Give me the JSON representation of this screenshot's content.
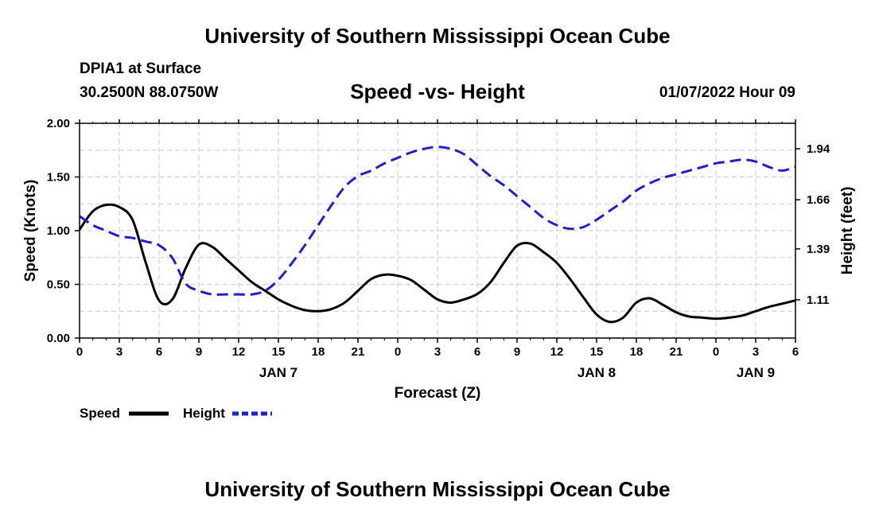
{
  "header": {
    "title": "University of Southern Mississippi Ocean Cube",
    "station": "DPIA1 at Surface",
    "coords": "30.2500N  88.0750W",
    "datetime": "01/07/2022 Hour 09"
  },
  "footer": {
    "title": "University of Southern Mississippi Ocean Cube"
  },
  "chart_data": {
    "type": "line",
    "title": "Speed -vs- Height",
    "xlabel": "Forecast (Z)",
    "ylabel": "Speed (Knots)",
    "y2label": "Height (feet)",
    "ylim": [
      0,
      2
    ],
    "y2lim": [
      0.9,
      2.08
    ],
    "x_tick_labels": [
      "0",
      "3",
      "6",
      "9",
      "12",
      "15",
      "18",
      "21",
      "0",
      "3",
      "6",
      "9",
      "12",
      "15",
      "18",
      "21",
      "0",
      "3",
      "6"
    ],
    "day_labels": [
      {
        "label": "JAN 7",
        "hour": 15
      },
      {
        "label": "JAN 8",
        "hour": 39
      },
      {
        "label": "JAN 9",
        "hour": 51
      }
    ],
    "y_ticks": [
      "0.00",
      "0.50",
      "1.00",
      "1.50",
      "2.00"
    ],
    "y_tick_values": [
      0,
      0.5,
      1.0,
      1.5,
      2.0
    ],
    "y2_ticks": [
      "1.11",
      "1.39",
      "1.66",
      "1.94"
    ],
    "y2_tick_values": [
      1.11,
      1.39,
      1.66,
      1.94
    ],
    "grid": true,
    "legend_position": "bottom-left",
    "series": [
      {
        "name": "Speed",
        "color": "#000000",
        "dash": "solid",
        "axis": "left",
        "x": [
          0,
          1,
          2,
          3,
          4,
          5,
          6,
          7,
          8,
          9,
          10,
          11,
          12,
          13,
          14,
          15,
          16,
          17,
          18,
          19,
          20,
          21,
          22,
          23,
          24,
          25,
          26,
          27,
          28,
          29,
          30,
          31,
          32,
          33,
          34,
          35,
          36,
          37,
          38,
          39,
          40,
          41,
          42,
          43,
          44,
          45,
          46,
          47,
          48,
          49,
          50,
          51,
          52,
          53,
          54
        ],
        "values": [
          1.01,
          1.18,
          1.24,
          1.22,
          1.1,
          0.7,
          0.35,
          0.36,
          0.65,
          0.87,
          0.85,
          0.74,
          0.63,
          0.52,
          0.44,
          0.36,
          0.3,
          0.26,
          0.25,
          0.27,
          0.33,
          0.44,
          0.55,
          0.59,
          0.58,
          0.54,
          0.45,
          0.36,
          0.33,
          0.36,
          0.41,
          0.52,
          0.7,
          0.86,
          0.88,
          0.8,
          0.7,
          0.55,
          0.38,
          0.22,
          0.15,
          0.19,
          0.33,
          0.37,
          0.31,
          0.24,
          0.2,
          0.19,
          0.18,
          0.19,
          0.21,
          0.25,
          0.29,
          0.32,
          0.35
        ]
      },
      {
        "name": "Height",
        "color": "#1f1fd0",
        "dash": "dashed",
        "axis": "right",
        "x": [
          0,
          1,
          2,
          3,
          4,
          5,
          6,
          7,
          8,
          9,
          10,
          11,
          12,
          13,
          14,
          15,
          16,
          17,
          18,
          19,
          20,
          21,
          22,
          23,
          24,
          25,
          26,
          27,
          28,
          29,
          30,
          31,
          32,
          33,
          34,
          35,
          36,
          37,
          38,
          39,
          40,
          41,
          42,
          43,
          44,
          45,
          46,
          47,
          48,
          49,
          50,
          51,
          52,
          53,
          54
        ],
        "values": [
          1.57,
          1.52,
          1.49,
          1.46,
          1.45,
          1.43,
          1.41,
          1.34,
          1.2,
          1.16,
          1.14,
          1.14,
          1.14,
          1.14,
          1.16,
          1.22,
          1.31,
          1.41,
          1.52,
          1.63,
          1.73,
          1.79,
          1.82,
          1.86,
          1.89,
          1.92,
          1.94,
          1.95,
          1.94,
          1.91,
          1.85,
          1.79,
          1.74,
          1.68,
          1.62,
          1.56,
          1.52,
          1.5,
          1.51,
          1.55,
          1.6,
          1.65,
          1.71,
          1.75,
          1.78,
          1.8,
          1.82,
          1.84,
          1.86,
          1.87,
          1.88,
          1.87,
          1.84,
          1.82,
          1.84
        ]
      }
    ]
  }
}
